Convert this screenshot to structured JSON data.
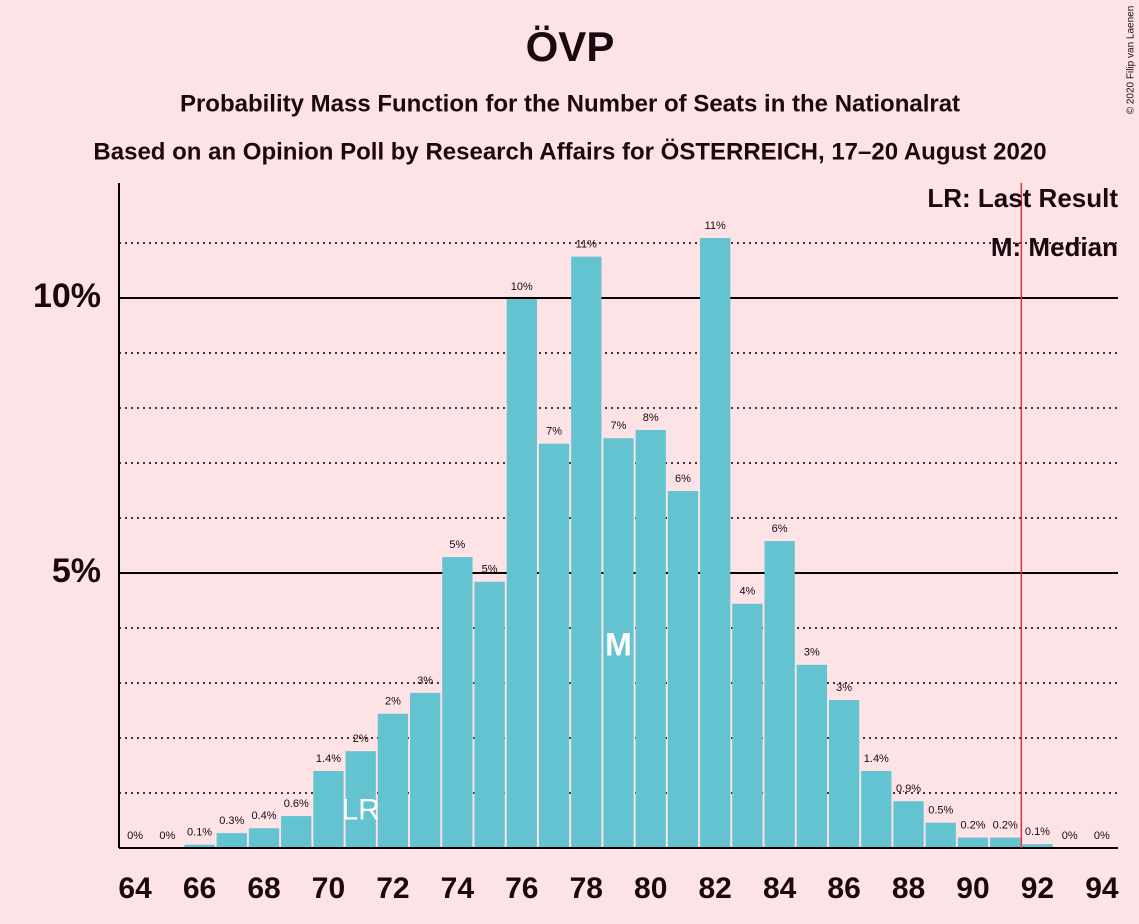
{
  "chart_data": {
    "type": "bar",
    "title": "ÖVP",
    "subtitle": "Probability Mass Function for the Number of Seats in the Nationalrat",
    "subtitle2": "Based on an Opinion Poll by Research Affairs for ÖSTERREICH, 17–20 August 2020",
    "copyright": "© 2020 Filip van Laenen",
    "x": [
      64,
      65,
      66,
      67,
      68,
      69,
      70,
      71,
      72,
      73,
      74,
      75,
      76,
      77,
      78,
      79,
      80,
      81,
      82,
      83,
      84,
      85,
      86,
      87,
      88,
      89,
      90,
      91,
      92,
      93,
      94
    ],
    "values": [
      0,
      0,
      0.06,
      0.27,
      0.36,
      0.58,
      1.4,
      1.76,
      2.44,
      2.82,
      5.29,
      4.84,
      9.98,
      7.35,
      10.75,
      7.45,
      7.6,
      6.49,
      11.09,
      4.44,
      5.58,
      3.33,
      2.69,
      1.4,
      0.85,
      0.46,
      0.19,
      0.19,
      0.07,
      0,
      0
    ],
    "value_labels": [
      "0%",
      "0%",
      "0.1%",
      "0.3%",
      "0.4%",
      "0.6%",
      "1.4%",
      "2%",
      "2%",
      "3%",
      "5%",
      "5%",
      "10%",
      "7%",
      "11%",
      "7%",
      "8%",
      "6%",
      "11%",
      "4%",
      "6%",
      "3%",
      "3%",
      "1.4%",
      "0.9%",
      "0.5%",
      "0.2%",
      "0.2%",
      "0.1%",
      "0%",
      "0%"
    ],
    "color": "#64c3d0",
    "xlim": [
      63.5,
      94.5
    ],
    "xticks": [
      64,
      66,
      68,
      70,
      72,
      74,
      76,
      78,
      80,
      82,
      84,
      86,
      88,
      90,
      92,
      94
    ],
    "ylim": [
      0,
      12.09
    ],
    "yticks": [
      {
        "value": 5,
        "label": "5%"
      },
      {
        "value": 10,
        "label": "10%"
      }
    ],
    "minor_yticks": [
      1,
      2,
      3,
      4,
      6,
      7,
      8,
      9,
      11
    ],
    "grid": true,
    "threshold_x": 91.5,
    "threshold_color": "#e0303a",
    "last_result": {
      "x": 71,
      "label": "LR"
    },
    "median": {
      "x": 79,
      "label": "M"
    },
    "legend": [
      "LR: Last Result",
      "M: Median"
    ]
  }
}
